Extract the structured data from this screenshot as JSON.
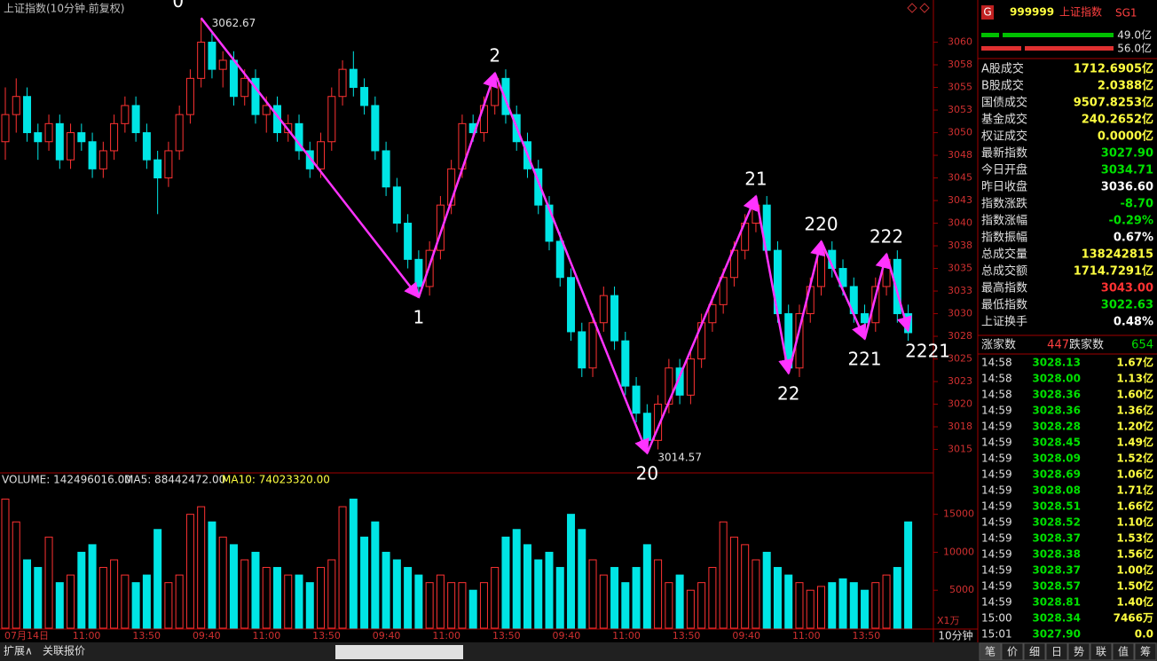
{
  "chart_data": {
    "type": "candlestick",
    "title": "上证指数(10分钟.前复权)",
    "ylim": [
      3012.7,
      3062.7
    ],
    "yticks": [
      3060,
      {
        "value": 3057.5,
        "label": "3058"
      },
      {
        "value": 3055,
        "label": "3055"
      },
      {
        "value": 3052.5,
        "label": "3053"
      },
      3050,
      {
        "value": 3047.5,
        "label": "3048"
      },
      3045,
      {
        "value": 3042.5,
        "label": "3043"
      },
      3040,
      {
        "value": 3037.5,
        "label": "3038"
      },
      3035,
      {
        "value": 3032.5,
        "label": "3033"
      },
      3030,
      {
        "value": 3027.5,
        "label": "3028"
      },
      3025,
      {
        "value": 3022.5,
        "label": "3023"
      },
      3020,
      {
        "value": 3017.5,
        "label": "3018"
      },
      3015
    ],
    "up_color": "#ff3232",
    "down_color": "#00e5e5",
    "candles": [
      [
        3049,
        3055,
        3047,
        3052
      ],
      [
        3052,
        3056,
        3050,
        3054
      ],
      [
        3054,
        3055,
        3049,
        3050
      ],
      [
        3050,
        3051,
        3047,
        3049
      ],
      [
        3049,
        3052,
        3048,
        3051
      ],
      [
        3051,
        3052,
        3046,
        3047
      ],
      [
        3047,
        3051,
        3046,
        3050
      ],
      [
        3050,
        3051,
        3048,
        3049
      ],
      [
        3049,
        3050,
        3045,
        3046
      ],
      [
        3046,
        3049,
        3045,
        3048
      ],
      [
        3048,
        3052,
        3047,
        3051
      ],
      [
        3051,
        3054,
        3050,
        3053
      ],
      [
        3053,
        3054,
        3049,
        3050
      ],
      [
        3050,
        3051,
        3046,
        3047
      ],
      [
        3047,
        3048,
        3041,
        3045
      ],
      [
        3045,
        3049,
        3044,
        3048
      ],
      [
        3048,
        3053,
        3047,
        3052
      ],
      [
        3052,
        3057,
        3051,
        3056
      ],
      [
        3056,
        3062.67,
        3055,
        3060
      ],
      [
        3060,
        3061,
        3056,
        3057
      ],
      [
        3057,
        3059,
        3055,
        3058
      ],
      [
        3058,
        3059,
        3053,
        3054
      ],
      [
        3054,
        3057,
        3053,
        3056
      ],
      [
        3056,
        3057,
        3051,
        3052
      ],
      [
        3052,
        3054,
        3050,
        3053
      ],
      [
        3053,
        3054,
        3049,
        3050
      ],
      [
        3050,
        3052,
        3049,
        3051
      ],
      [
        3051,
        3052,
        3047,
        3048
      ],
      [
        3048,
        3049,
        3045,
        3046
      ],
      [
        3046,
        3050,
        3045,
        3049
      ],
      [
        3049,
        3055,
        3048,
        3054
      ],
      [
        3054,
        3058,
        3053,
        3057
      ],
      [
        3057,
        3059,
        3054,
        3055
      ],
      [
        3055,
        3056,
        3052,
        3053
      ],
      [
        3053,
        3054,
        3047,
        3048
      ],
      [
        3048,
        3049,
        3043,
        3044
      ],
      [
        3044,
        3045,
        3039,
        3040
      ],
      [
        3040,
        3041,
        3035,
        3036
      ],
      [
        3036,
        3037,
        3031.8,
        3033
      ],
      [
        3033,
        3038,
        3032,
        3037
      ],
      [
        3037,
        3043,
        3036,
        3042
      ],
      [
        3042,
        3047,
        3041,
        3046
      ],
      [
        3046,
        3052,
        3045,
        3051
      ],
      [
        3051,
        3052,
        3049,
        3050
      ],
      [
        3050,
        3054,
        3049,
        3053
      ],
      [
        3053,
        3056.6,
        3052,
        3056
      ],
      [
        3056,
        3057,
        3051,
        3052
      ],
      [
        3052,
        3053,
        3048,
        3049
      ],
      [
        3049,
        3050,
        3045,
        3046
      ],
      [
        3046,
        3047,
        3041,
        3042
      ],
      [
        3042,
        3043,
        3037,
        3038
      ],
      [
        3038,
        3039,
        3033,
        3034
      ],
      [
        3034,
        3035,
        3027,
        3028
      ],
      [
        3028,
        3029,
        3023,
        3024
      ],
      [
        3024,
        3030,
        3023,
        3029
      ],
      [
        3029,
        3033,
        3028,
        3032
      ],
      [
        3032,
        3033,
        3026,
        3027
      ],
      [
        3027,
        3028,
        3021,
        3022
      ],
      [
        3022,
        3023,
        3018,
        3019
      ],
      [
        3019,
        3020,
        3014.57,
        3016
      ],
      [
        3016,
        3021,
        3015,
        3020
      ],
      [
        3020,
        3025,
        3019,
        3024
      ],
      [
        3024,
        3025,
        3020,
        3021
      ],
      [
        3021,
        3026,
        3020,
        3025
      ],
      [
        3025,
        3030,
        3024,
        3029
      ],
      [
        3029,
        3032,
        3028,
        3031
      ],
      [
        3031,
        3035,
        3030,
        3034
      ],
      [
        3034,
        3038,
        3033,
        3037
      ],
      [
        3037,
        3041,
        3036,
        3040
      ],
      [
        3040,
        3043,
        3039,
        3042
      ],
      [
        3042,
        3043,
        3036,
        3037
      ],
      [
        3037,
        3038,
        3029,
        3030
      ],
      [
        3030,
        3031,
        3023.4,
        3024
      ],
      [
        3024,
        3031,
        3023,
        3030
      ],
      [
        3030,
        3034,
        3029,
        3033
      ],
      [
        3033,
        3038,
        3032,
        3037
      ],
      [
        3037,
        3038,
        3034,
        3035
      ],
      [
        3035,
        3036,
        3032,
        3033
      ],
      [
        3033,
        3034,
        3029,
        3030
      ],
      [
        3030,
        3031,
        3027.2,
        3029
      ],
      [
        3029,
        3034,
        3028,
        3033
      ],
      [
        3033,
        3036.6,
        3032,
        3036
      ],
      [
        3036,
        3037,
        3029,
        3030
      ],
      [
        3030,
        3031,
        3027,
        3027.9
      ]
    ],
    "zigzag": [
      {
        "label": "0",
        "index": 18,
        "price": 3062.67
      },
      {
        "label": "1",
        "index": 38,
        "price": 3031.8
      },
      {
        "label": "2",
        "index": 45,
        "price": 3056.6
      },
      {
        "label": "20",
        "index": 59,
        "price": 3014.57
      },
      {
        "label": "21",
        "index": 69,
        "price": 3043
      },
      {
        "label": "22",
        "index": 72,
        "price": 3023.4
      },
      {
        "label": "220",
        "index": 75,
        "price": 3038
      },
      {
        "label": "221",
        "index": 79,
        "price": 3027.2
      },
      {
        "label": "222",
        "index": 81,
        "price": 3036.6
      },
      {
        "label": "2221",
        "index": 83,
        "price": 3028.1
      }
    ],
    "zigzag_color": "#ff33ff",
    "volume": {
      "header": [
        "VOLUME: 142496016.00",
        "MA5: 88442472.00",
        "MA10: 74023320.00"
      ],
      "unit": "X1万",
      "ylim": [
        0,
        18700
      ],
      "yticks": [
        15000,
        10000,
        5000
      ],
      "values": [
        17000,
        14000,
        9000,
        8000,
        12000,
        6000,
        7000,
        10000,
        11000,
        8000,
        9000,
        7000,
        6000,
        7000,
        13000,
        6000,
        7000,
        15000,
        16000,
        14000,
        12000,
        11000,
        9000,
        10000,
        8000,
        8000,
        7000,
        7000,
        6000,
        8000,
        9000,
        16000,
        17000,
        12000,
        14000,
        10000,
        9000,
        8000,
        7000,
        6000,
        7000,
        6000,
        6000,
        5000,
        6000,
        8000,
        12000,
        13000,
        11000,
        9000,
        10000,
        8000,
        15000,
        13000,
        9000,
        7000,
        8000,
        6000,
        8000,
        11000,
        9000,
        6000,
        7000,
        5000,
        6000,
        8000,
        14000,
        12000,
        11000,
        9000,
        10000,
        8000,
        7000,
        6000,
        5000,
        5500,
        6000,
        6500,
        6000,
        5000,
        6000,
        7000,
        8000,
        14000
      ]
    },
    "x_labels": [
      "07月14日",
      "11:00",
      "13:50",
      "09:40",
      "11:00",
      "13:50",
      "09:40",
      "11:00",
      "13:50",
      "09:40",
      "11:00",
      "13:50",
      "09:40",
      "11:00",
      "13:50"
    ],
    "period": "10分钟"
  },
  "quote_panel": {
    "icon": "G",
    "code": "999999",
    "name": "上证指数",
    "tag": "SG1",
    "bars": [
      {
        "label": "49.0亿",
        "color": "#00c000"
      },
      {
        "label": "56.0亿",
        "color": "#e03030"
      }
    ],
    "stats": [
      [
        "A股成交",
        "1712.6905亿",
        "#ffff40"
      ],
      [
        "B股成交",
        "2.0388亿",
        "#ffff40"
      ],
      [
        "国债成交",
        "9507.8253亿",
        "#ffff40"
      ],
      [
        "基金成交",
        "240.2652亿",
        "#ffff40"
      ],
      [
        "权证成交",
        "0.0000亿",
        "#ffff40"
      ],
      [
        "最新指数",
        "3027.90",
        "#00e000"
      ],
      [
        "今日开盘",
        "3034.71",
        "#00e000"
      ],
      [
        "昨日收盘",
        "3036.60",
        "#ffffff"
      ],
      [
        "指数涨跌",
        "-8.70",
        "#00e000"
      ],
      [
        "指数涨幅",
        "-0.29%",
        "#00e000"
      ],
      [
        "指数振幅",
        "0.67%",
        "#ffffff"
      ],
      [
        "总成交量",
        "138242815",
        "#ffff40"
      ],
      [
        "总成交额",
        "1714.7291亿",
        "#ffff40"
      ],
      [
        "最高指数",
        "3043.00",
        "#ff3232"
      ],
      [
        "最低指数",
        "3022.63",
        "#00e000"
      ],
      [
        "上证换手",
        "0.48%",
        "#ffffff"
      ]
    ],
    "breadth": [
      "涨家数",
      "447",
      "跌家数",
      "654"
    ],
    "trades": [
      [
        "14:58",
        "3028.13",
        "1.67亿"
      ],
      [
        "14:58",
        "3028.00",
        "1.13亿"
      ],
      [
        "14:58",
        "3028.36",
        "1.60亿"
      ],
      [
        "14:59",
        "3028.36",
        "1.36亿"
      ],
      [
        "14:59",
        "3028.28",
        "1.20亿"
      ],
      [
        "14:59",
        "3028.45",
        "1.49亿"
      ],
      [
        "14:59",
        "3028.09",
        "1.52亿"
      ],
      [
        "14:59",
        "3028.69",
        "1.06亿"
      ],
      [
        "14:59",
        "3028.08",
        "1.71亿"
      ],
      [
        "14:59",
        "3028.51",
        "1.66亿"
      ],
      [
        "14:59",
        "3028.52",
        "1.10亿"
      ],
      [
        "14:59",
        "3028.37",
        "1.53亿"
      ],
      [
        "14:59",
        "3028.38",
        "1.56亿"
      ],
      [
        "14:59",
        "3028.37",
        "1.00亿"
      ],
      [
        "14:59",
        "3028.57",
        "1.50亿"
      ],
      [
        "14:59",
        "3028.81",
        "1.40亿"
      ],
      [
        "15:00",
        "3028.34",
        "7466万"
      ],
      [
        "15:01",
        "3027.90",
        "0.0"
      ]
    ],
    "tabs": [
      "笔",
      "价",
      "细",
      "日",
      "势",
      "联",
      "值",
      "筹"
    ]
  },
  "footer": {
    "buttons": [
      "扩展∧",
      "关联报价"
    ]
  }
}
